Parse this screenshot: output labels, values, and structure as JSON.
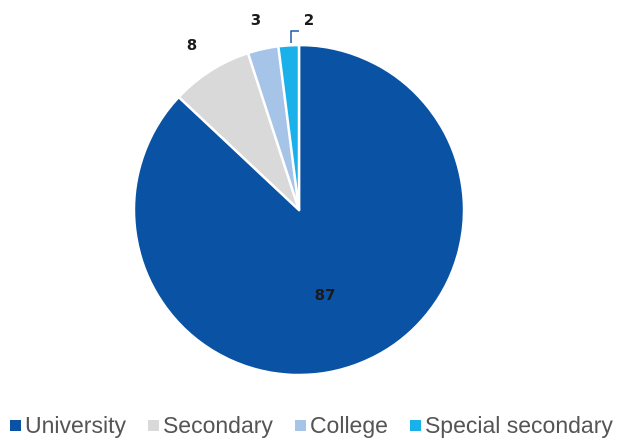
{
  "chart_data": {
    "type": "pie",
    "title": "",
    "categories": [
      "University",
      "Secondary",
      "College",
      "Special secondary"
    ],
    "values": [
      87,
      8,
      3,
      2
    ],
    "labels": [
      "87",
      "8",
      "3",
      "2"
    ],
    "colors": [
      "#0a52a3",
      "#d9d9d9",
      "#a6c4e8",
      "#1ab0ea"
    ],
    "start": "12 o'clock",
    "direction": "clockwise",
    "legend": "bottom"
  }
}
